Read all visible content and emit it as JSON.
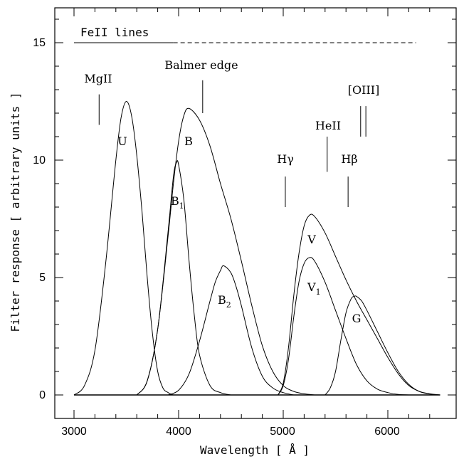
{
  "chart_data": {
    "type": "line",
    "xlabel": "Wavelength [ Å ]",
    "ylabel": "Filter response [ arbitrary units ]",
    "xlim": [
      2850,
      6650
    ],
    "ylim": [
      -1,
      16.5
    ],
    "xticks": [
      3000,
      4000,
      5000,
      6000
    ],
    "yticks": [
      0,
      5,
      10,
      15
    ],
    "grid": false,
    "series": [
      {
        "name": "U",
        "label": "U",
        "x": [
          3000,
          3100,
          3200,
          3300,
          3400,
          3450,
          3500,
          3550,
          3600,
          3650,
          3700,
          3750,
          3800,
          3850,
          3900,
          3950,
          4000
        ],
        "y": [
          0,
          0.4,
          1.9,
          5.5,
          10.0,
          11.8,
          12.5,
          11.9,
          10.2,
          7.8,
          5.0,
          2.6,
          1.0,
          0.3,
          0.1,
          0,
          0
        ]
      },
      {
        "name": "B",
        "label": "B",
        "x": [
          3600,
          3700,
          3800,
          3900,
          3950,
          4000,
          4050,
          4100,
          4200,
          4300,
          4400,
          4500,
          4600,
          4700,
          4800,
          4900,
          5000,
          5100,
          5200,
          5300
        ],
        "y": [
          0,
          0.6,
          2.8,
          6.8,
          9.0,
          10.8,
          11.9,
          12.2,
          11.7,
          10.6,
          9.0,
          7.5,
          5.7,
          3.8,
          2.1,
          1.0,
          0.4,
          0.15,
          0.05,
          0
        ]
      },
      {
        "name": "B1",
        "label": "B",
        "label_sub": "1",
        "x": [
          3600,
          3700,
          3800,
          3900,
          3950,
          3980,
          4000,
          4050,
          4100,
          4150,
          4200,
          4300,
          4400,
          4500
        ],
        "y": [
          0,
          0.6,
          2.8,
          7.0,
          9.3,
          9.9,
          9.8,
          8.3,
          5.7,
          3.4,
          1.7,
          0.4,
          0.1,
          0
        ]
      },
      {
        "name": "B2",
        "label": "B",
        "label_sub": "2",
        "x": [
          3900,
          4000,
          4100,
          4200,
          4300,
          4350,
          4400,
          4430,
          4500,
          4550,
          4600,
          4700,
          4800,
          4900,
          5000,
          5100
        ],
        "y": [
          0,
          0.2,
          0.9,
          2.3,
          4.0,
          4.8,
          5.3,
          5.5,
          5.2,
          4.6,
          3.8,
          2.0,
          0.8,
          0.3,
          0.1,
          0
        ]
      },
      {
        "name": "V",
        "label": "V",
        "x": [
          4950,
          5000,
          5050,
          5100,
          5150,
          5200,
          5250,
          5300,
          5400,
          5500,
          5600,
          5700,
          5800,
          5900,
          6000,
          6100,
          6200,
          6300,
          6400,
          6500
        ],
        "y": [
          0,
          0.5,
          2.0,
          4.2,
          6.0,
          7.2,
          7.65,
          7.6,
          6.9,
          5.9,
          4.9,
          4.0,
          3.2,
          2.4,
          1.6,
          0.9,
          0.4,
          0.15,
          0.05,
          0
        ]
      },
      {
        "name": "V1",
        "label": "V",
        "label_sub": "1",
        "x": [
          4950,
          5000,
          5050,
          5100,
          5150,
          5200,
          5250,
          5300,
          5400,
          5500,
          5600,
          5700,
          5800,
          5900,
          6000,
          6100,
          6200
        ],
        "y": [
          0,
          0.4,
          1.5,
          3.3,
          4.8,
          5.6,
          5.85,
          5.7,
          4.8,
          3.6,
          2.4,
          1.3,
          0.6,
          0.25,
          0.1,
          0.02,
          0
        ]
      },
      {
        "name": "G",
        "label": "G",
        "x": [
          5400,
          5450,
          5500,
          5550,
          5600,
          5650,
          5680,
          5700,
          5750,
          5800,
          5900,
          6000,
          6100,
          6200,
          6300,
          6400,
          6500
        ],
        "y": [
          0,
          0.3,
          1.0,
          2.3,
          3.5,
          4.1,
          4.2,
          4.2,
          4.0,
          3.6,
          2.7,
          1.8,
          1.0,
          0.45,
          0.15,
          0.04,
          0
        ]
      }
    ],
    "features": [
      {
        "name": "FeII lines",
        "y": 15,
        "x_solid": [
          3000,
          3950
        ],
        "x_dashed": [
          3950,
          6270
        ]
      },
      {
        "name": "MgII",
        "x": 3240,
        "y_range": [
          11.5,
          12.8
        ]
      },
      {
        "name": "Balmer edge",
        "x": 4230,
        "y_range": [
          12.0,
          13.4
        ]
      },
      {
        "name": "Hγ",
        "x": 5020,
        "y_range": [
          8.0,
          9.3
        ]
      },
      {
        "name": "HeII",
        "x": 5420,
        "y_range": [
          9.5,
          11.0
        ]
      },
      {
        "name": "Hβ",
        "x": 5620,
        "y_range": [
          8.0,
          9.3
        ]
      },
      {
        "name": "[OIII]",
        "x": [
          5740,
          5790
        ],
        "y_range": [
          11.0,
          12.3
        ]
      }
    ],
    "labels": {
      "feii": "FeII lines",
      "mgii": "MgII",
      "balmer": "Balmer edge",
      "hgamma": "Hγ",
      "heii": "HeII",
      "hbeta": "Hβ",
      "oiii": "[OIII]"
    }
  }
}
